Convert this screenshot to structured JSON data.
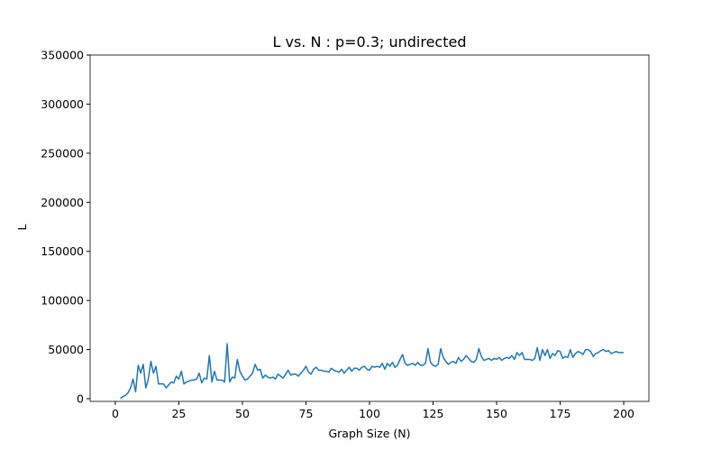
{
  "chart_data": {
    "type": "line",
    "title": "L vs. N : p=0.3; undirected",
    "x_label": "Graph Size (N)",
    "y_label": "L",
    "color": "#1f77b4",
    "x": [
      2,
      3,
      4,
      5,
      6,
      7,
      8,
      9,
      10,
      11,
      12,
      13,
      14,
      15,
      16,
      17,
      18,
      19,
      20,
      21,
      22,
      23,
      24,
      25,
      26,
      27,
      28,
      29,
      30,
      31,
      32,
      33,
      34,
      35,
      36,
      37,
      38,
      39,
      40,
      41,
      42,
      43,
      44,
      45,
      46,
      47,
      48,
      49,
      50,
      51,
      52,
      53,
      54,
      55,
      56,
      57,
      58,
      59,
      60,
      61,
      62,
      63,
      64,
      65,
      66,
      67,
      68,
      69,
      70,
      71,
      72,
      73,
      74,
      75,
      76,
      77,
      78,
      79,
      80,
      81,
      82,
      83,
      84,
      85,
      86,
      87,
      88,
      89,
      90,
      91,
      92,
      93,
      94,
      95,
      96,
      97,
      98,
      99,
      100,
      101,
      102,
      103,
      104,
      105,
      106,
      107,
      108,
      109,
      110,
      111,
      112,
      113,
      114,
      115,
      116,
      117,
      118,
      119,
      120,
      121,
      122,
      123,
      124,
      125,
      126,
      127,
      128,
      129,
      130,
      131,
      132,
      133,
      134,
      135,
      136,
      137,
      138,
      139,
      140,
      141,
      142,
      143,
      144,
      145,
      146,
      147,
      148,
      149,
      150,
      151,
      152,
      153,
      154,
      155,
      156,
      157,
      158,
      159,
      160,
      161,
      162,
      163,
      164,
      165,
      166,
      167,
      168,
      169,
      170,
      171,
      172,
      173,
      174,
      175,
      176,
      177,
      178,
      179,
      180,
      181,
      182,
      183,
      184,
      185,
      186,
      187,
      188,
      189,
      190,
      191,
      192,
      193,
      194,
      195,
      196,
      197,
      198,
      199,
      200
    ],
    "values": [
      500,
      2000,
      3500,
      6000,
      11000,
      20000,
      7000,
      34000,
      26000,
      35000,
      11000,
      20000,
      38000,
      26000,
      33000,
      15000,
      15000,
      15000,
      11000,
      14000,
      17000,
      16000,
      23000,
      20000,
      28000,
      15000,
      17000,
      18000,
      19000,
      19000,
      20000,
      26000,
      16000,
      21000,
      20000,
      44000,
      17000,
      28000,
      19000,
      19000,
      19000,
      17000,
      56000,
      17000,
      22000,
      21000,
      40000,
      28000,
      23000,
      19000,
      20000,
      23000,
      26000,
      35000,
      29000,
      30000,
      21000,
      24000,
      22000,
      21000,
      22000,
      20000,
      25000,
      23000,
      21000,
      25000,
      29000,
      24000,
      25000,
      25000,
      23000,
      26000,
      29000,
      33000,
      27000,
      25000,
      30000,
      32000,
      29000,
      29000,
      28000,
      28000,
      27000,
      31000,
      29000,
      28000,
      27000,
      30000,
      26000,
      29000,
      32000,
      28000,
      31000,
      31000,
      29000,
      32000,
      33000,
      30000,
      29000,
      33000,
      32000,
      33000,
      32000,
      36000,
      30000,
      36000,
      33000,
      37000,
      32000,
      34000,
      40000,
      45000,
      36000,
      34000,
      35000,
      36000,
      34000,
      37000,
      34000,
      34000,
      36000,
      51000,
      37000,
      34000,
      33000,
      35000,
      51000,
      42000,
      38000,
      35000,
      37000,
      38000,
      36000,
      42000,
      38000,
      40000,
      44000,
      41000,
      38000,
      37000,
      40000,
      51000,
      43000,
      39000,
      40000,
      41000,
      39000,
      41000,
      40000,
      42000,
      39000,
      41000,
      42000,
      41000,
      44000,
      40000,
      47000,
      44000,
      47000,
      40000,
      40000,
      40000,
      39000,
      41000,
      52000,
      39000,
      50000,
      44000,
      50000,
      41000,
      46000,
      44000,
      49000,
      48000,
      41000,
      43000,
      42000,
      50000,
      42000,
      46000,
      48000,
      47000,
      45000,
      50000,
      50000,
      48000,
      43000,
      46000,
      47000,
      49000,
      50000,
      48000,
      49000,
      46000,
      47000,
      48000,
      47000,
      47000,
      47000
    ],
    "xlim": [
      -9.9,
      209.9
    ],
    "ylim": [
      -2750,
      350000
    ],
    "xticks": [
      0,
      25,
      50,
      75,
      100,
      125,
      150,
      175,
      200
    ],
    "yticks": [
      0,
      50000,
      100000,
      150000,
      200000,
      250000,
      300000,
      350000
    ]
  }
}
